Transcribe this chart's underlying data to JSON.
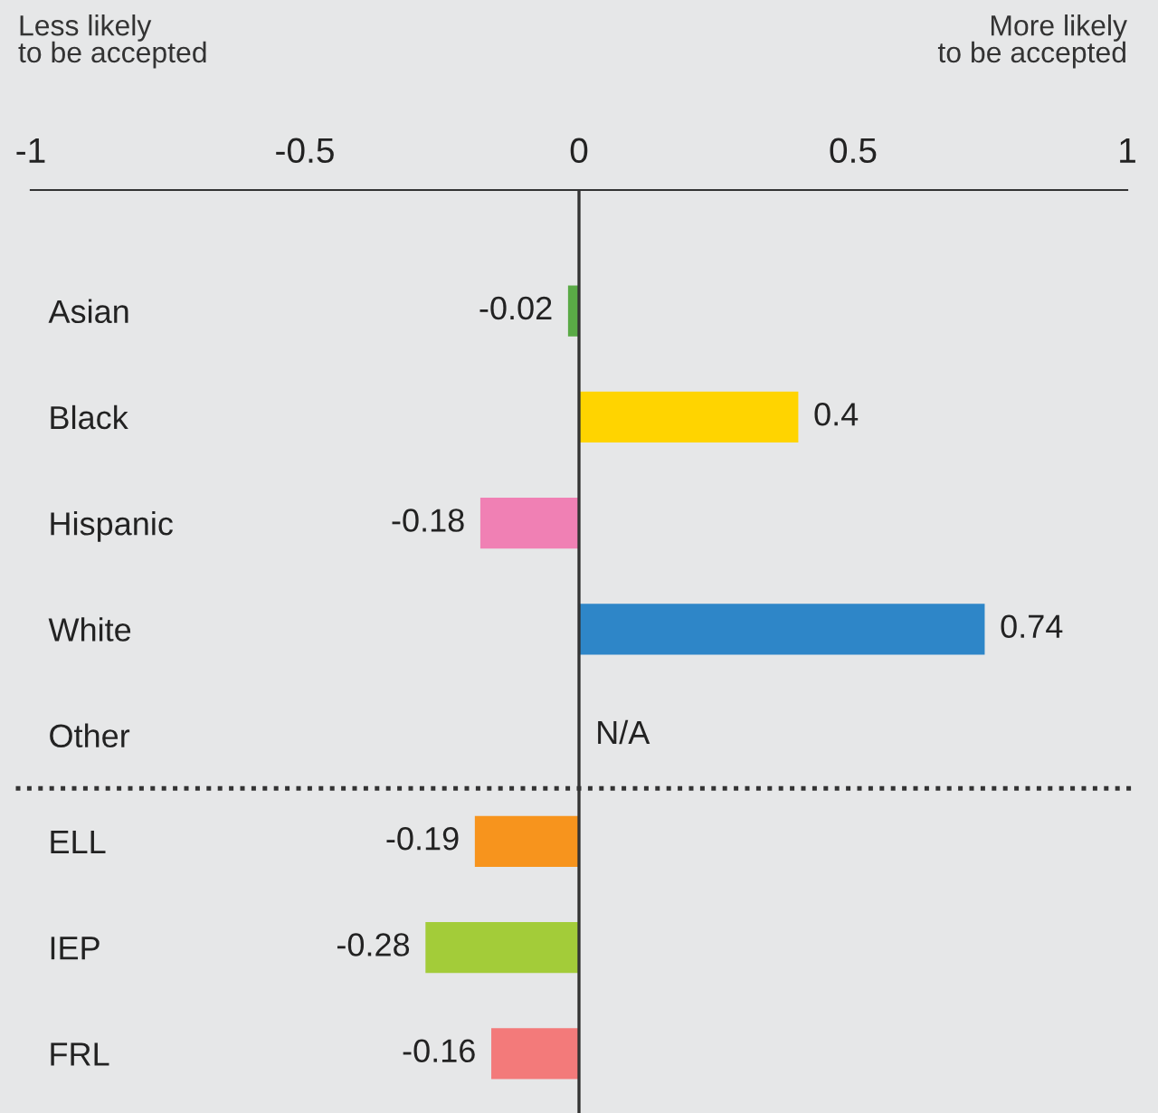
{
  "chart_data": {
    "type": "bar",
    "orientation": "horizontal",
    "categories": [
      "Asian",
      "Black",
      "Hispanic",
      "White",
      "Other",
      "ELL",
      "IEP",
      "FRL"
    ],
    "values": [
      -0.02,
      0.4,
      -0.18,
      0.74,
      null,
      -0.19,
      -0.28,
      -0.16
    ],
    "colors": [
      "#5aaa46",
      "#ffd400",
      "#f080b4",
      "#2e86c8",
      "#999999",
      "#f7941d",
      "#a3cc39",
      "#f37a7a"
    ],
    "xlim": [
      -1,
      1
    ],
    "xticks": [
      -1,
      -0.5,
      0,
      0.5,
      1
    ],
    "data_labels": true,
    "grid": false,
    "legend": false,
    "annotations": [
      "Less likely\nto be accepted",
      "More likely\nto be accepted",
      "N/A"
    ],
    "ref_lines": [
      {
        "axis": "x",
        "value": 0,
        "color": "#333333",
        "line_style": "solid"
      }
    ]
  }
}
